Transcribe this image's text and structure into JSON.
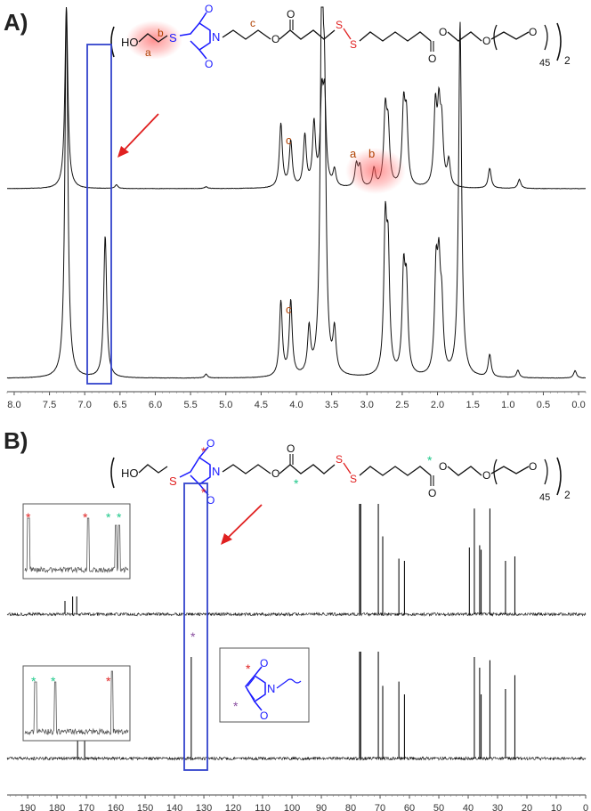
{
  "panels": {
    "a": {
      "label": "A)",
      "structure": {
        "left_group": "HO",
        "s_left": "S",
        "n_atom": "N",
        "o_top": "O",
        "o_bot": "O",
        "o_ester": "O",
        "o_carbonyl": "O",
        "s_s": "S",
        "s_s2": "S",
        "o_ester2": "O",
        "o_carbonyl2": "O",
        "o_peg1": "O",
        "o_peg2": "O",
        "subscript_n": "45",
        "subscript_2": "2",
        "label_a": "a",
        "label_b": "b",
        "label_c": "c"
      },
      "peak_labels": {
        "c_top": "c",
        "a_top": "a",
        "b_top": "b",
        "c_bottom": "c"
      },
      "xaxis_ticks": [
        "8.0",
        "7.5",
        "7.0",
        "6.5",
        "6.0",
        "5.5",
        "5.0",
        "4.5",
        "4.0",
        "3.5",
        "3.0",
        "2.5",
        "2.0",
        "1.5",
        "1.0",
        "0.5",
        "0.0"
      ]
    },
    "b": {
      "label": "B)",
      "structure": {
        "left_group": "HO",
        "s_left": "S",
        "n_atom": "N",
        "o_top": "O",
        "o_bot": "O",
        "o_ester": "O",
        "o_carbonyl": "O",
        "s_s": "S",
        "s_s2": "S",
        "o_ester2": "O",
        "o_carbonyl2": "O",
        "o_peg1": "O",
        "o_peg2": "O",
        "subscript_n": "45",
        "subscript_2": "2"
      },
      "inset_maleimide": {
        "n_atom": "N",
        "o_top": "O",
        "o_bot": "O"
      },
      "xaxis_ticks": [
        "190",
        "180",
        "170",
        "160",
        "150",
        "140",
        "130",
        "120",
        "110",
        "100",
        "90",
        "80",
        "70",
        "60",
        "50",
        "40",
        "30",
        "20",
        "10",
        "0"
      ]
    }
  },
  "colors": {
    "highlight_box": "#3344cc",
    "arrow": "#e02020",
    "maleimide_blue": "#1a1aff",
    "sulfur_red": "#e02020",
    "label_brown": "#b04000",
    "star_red": "#e02020",
    "star_green": "#1ec88a",
    "star_purple": "#8a4fa0",
    "glow": "#ff6060"
  },
  "chart_data": [
    {
      "type": "line",
      "title": "",
      "xlabel": "",
      "ylabel": "",
      "x_unit": "ppm",
      "xlim": [
        8.1,
        -0.1
      ],
      "grid": false,
      "series": [
        {
          "peaks": [
            {
              "x": 7.26,
              "h": 1.0
            },
            {
              "x": 6.55,
              "h": 0.02
            },
            {
              "x": 5.28,
              "h": 0.01
            },
            {
              "x": 4.22,
              "h": 0.35
            },
            {
              "x": 4.08,
              "h": 0.25
            },
            {
              "x": 3.88,
              "h": 0.28
            },
            {
              "x": 3.75,
              "h": 0.34
            },
            {
              "x": 3.64,
              "h": 0.45
            },
            {
              "x": 3.6,
              "h": 0.45
            },
            {
              "x": 3.46,
              "h": 0.09
            },
            {
              "x": 3.15,
              "h": 0.12
            },
            {
              "x": 3.1,
              "h": 0.11
            },
            {
              "x": 2.9,
              "h": 0.1
            },
            {
              "x": 2.74,
              "h": 0.4
            },
            {
              "x": 2.7,
              "h": 0.3
            },
            {
              "x": 2.48,
              "h": 0.42
            },
            {
              "x": 2.44,
              "h": 0.35
            },
            {
              "x": 2.03,
              "h": 0.42
            },
            {
              "x": 1.98,
              "h": 0.38
            },
            {
              "x": 1.94,
              "h": 0.3
            },
            {
              "x": 1.84,
              "h": 0.14
            },
            {
              "x": 1.26,
              "h": 0.11
            },
            {
              "x": 0.84,
              "h": 0.05
            }
          ]
        },
        {
          "peaks": [
            {
              "x": 7.26,
              "h": 1.0
            },
            {
              "x": 6.71,
              "h": 0.38
            },
            {
              "x": 5.28,
              "h": 0.01
            },
            {
              "x": 4.22,
              "h": 0.2
            },
            {
              "x": 4.08,
              "h": 0.2
            },
            {
              "x": 3.82,
              "h": 0.12
            },
            {
              "x": 3.64,
              "h": 1.0
            },
            {
              "x": 3.6,
              "h": 0.6
            },
            {
              "x": 3.46,
              "h": 0.11
            },
            {
              "x": 2.74,
              "h": 0.38
            },
            {
              "x": 2.7,
              "h": 0.3
            },
            {
              "x": 2.48,
              "h": 0.26
            },
            {
              "x": 2.44,
              "h": 0.22
            },
            {
              "x": 2.02,
              "h": 0.26
            },
            {
              "x": 1.98,
              "h": 0.25
            },
            {
              "x": 1.94,
              "h": 0.16
            },
            {
              "x": 1.68,
              "h": 0.95
            },
            {
              "x": 1.26,
              "h": 0.06
            },
            {
              "x": 0.86,
              "h": 0.02
            },
            {
              "x": 0.05,
              "h": 0.02
            }
          ]
        }
      ]
    },
    {
      "type": "line",
      "title": "",
      "xlabel": "",
      "ylabel": "",
      "x_unit": "ppm",
      "xlim": [
        197,
        0
      ],
      "grid": false,
      "series": [
        {
          "peaks": [
            {
              "x": 177.3,
              "h": 0.12
            },
            {
              "x": 174.7,
              "h": 0.16
            },
            {
              "x": 173.3,
              "h": 0.16
            },
            {
              "x": 77.0,
              "h": 1.0
            },
            {
              "x": 76.6,
              "h": 1.0
            },
            {
              "x": 70.6,
              "h": 1.0
            },
            {
              "x": 69.1,
              "h": 0.7
            },
            {
              "x": 63.6,
              "h": 0.5
            },
            {
              "x": 61.7,
              "h": 0.48
            },
            {
              "x": 39.6,
              "h": 0.6
            },
            {
              "x": 37.9,
              "h": 0.95
            },
            {
              "x": 36.1,
              "h": 0.62
            },
            {
              "x": 35.6,
              "h": 0.58
            },
            {
              "x": 32.6,
              "h": 0.95
            },
            {
              "x": 27.3,
              "h": 0.48
            },
            {
              "x": 24.1,
              "h": 0.52
            }
          ]
        },
        {
          "peaks": [
            {
              "x": 173.0,
              "h": 0.2
            },
            {
              "x": 170.6,
              "h": 0.22
            },
            {
              "x": 134.3,
              "h": 0.95
            },
            {
              "x": 77.0,
              "h": 1.0
            },
            {
              "x": 76.6,
              "h": 1.0
            },
            {
              "x": 70.6,
              "h": 1.0
            },
            {
              "x": 69.1,
              "h": 0.68
            },
            {
              "x": 63.6,
              "h": 0.72
            },
            {
              "x": 61.7,
              "h": 0.6
            },
            {
              "x": 37.9,
              "h": 0.95
            },
            {
              "x": 36.1,
              "h": 0.85
            },
            {
              "x": 35.6,
              "h": 0.6
            },
            {
              "x": 32.6,
              "h": 0.92
            },
            {
              "x": 27.3,
              "h": 0.65
            },
            {
              "x": 24.1,
              "h": 0.78
            }
          ]
        }
      ]
    }
  ]
}
